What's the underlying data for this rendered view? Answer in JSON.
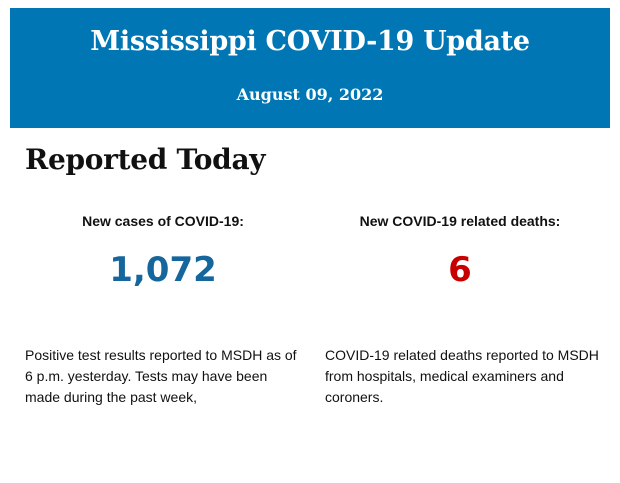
{
  "header": {
    "title": "Mississippi COVID-19 Update",
    "date": "August 09, 2022",
    "background_color": "#0077b4"
  },
  "section_title": "Reported Today",
  "stats": [
    {
      "label": "New cases of COVID-19:",
      "value": "1,072",
      "color": "#14669c",
      "description": "Positive test results reported to MSDH as of 6 p.m. yesterday. Tests may have been made during the past week,"
    },
    {
      "label": "New COVID-19 related deaths:",
      "value": "6",
      "color": "#c80000",
      "description": "COVID-19 related deaths reported to MSDH from hospitals, medical examiners and coroners."
    }
  ]
}
